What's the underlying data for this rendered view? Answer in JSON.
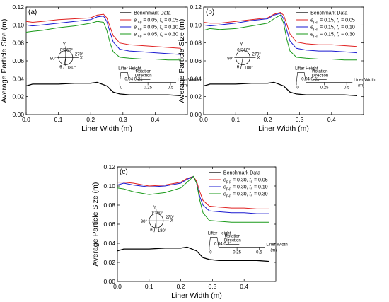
{
  "colors": {
    "benchmark": "#000000",
    "fs_005": "#e02020",
    "fs_010": "#1a1ad0",
    "fs_030": "#1a9a1a"
  },
  "chart_data": [
    {
      "type": "line",
      "panel_label": "(a)",
      "xlabel": "Liner Width (m)",
      "ylabel": "Average Particle Size (m)",
      "xlim": [
        0.0,
        0.5
      ],
      "ylim": [
        0.0,
        0.12
      ],
      "x_ticks": [
        "0.0",
        "0.1",
        "0.2",
        "0.3",
        "0.4"
      ],
      "y_ticks": [
        "0.00",
        "0.02",
        "0.04",
        "0.06",
        "0.08",
        "0.10",
        "0.12"
      ],
      "grid": false,
      "legend_position": "top-right",
      "series": [
        {
          "name": "Benchmark Data",
          "subscript": "",
          "fs": "",
          "color_key": "benchmark",
          "x": [
            0.0,
            0.02,
            0.05,
            0.1,
            0.15,
            0.2,
            0.22,
            0.25,
            0.27,
            0.29,
            0.32,
            0.36,
            0.4,
            0.44,
            0.48
          ],
          "y": [
            0.032,
            0.034,
            0.034,
            0.034,
            0.035,
            0.035,
            0.036,
            0.032,
            0.025,
            0.023,
            0.022,
            0.022,
            0.022,
            0.022,
            0.021
          ]
        },
        {
          "name": "e",
          "subscript": "p-p",
          "rest": " = 0.05, ",
          "fs_label": "f",
          "fs_sub": "s",
          "fs": " = 0.05",
          "color_key": "fs_005",
          "x": [
            0.0,
            0.02,
            0.05,
            0.1,
            0.15,
            0.2,
            0.22,
            0.24,
            0.25,
            0.26,
            0.27,
            0.29,
            0.32,
            0.36,
            0.4,
            0.44,
            0.48
          ],
          "y": [
            0.104,
            0.103,
            0.104,
            0.106,
            0.107,
            0.108,
            0.111,
            0.112,
            0.108,
            0.098,
            0.088,
            0.08,
            0.078,
            0.077,
            0.076,
            0.075,
            0.074
          ]
        },
        {
          "name": "e",
          "subscript": "p-p",
          "rest": " = 0.05, ",
          "fs_label": "f",
          "fs_sub": "s",
          "fs": " = 0.10",
          "color_key": "fs_010",
          "x": [
            0.0,
            0.02,
            0.05,
            0.1,
            0.15,
            0.2,
            0.22,
            0.24,
            0.25,
            0.26,
            0.27,
            0.29,
            0.32,
            0.36,
            0.4,
            0.44,
            0.48
          ],
          "y": [
            0.1,
            0.099,
            0.1,
            0.102,
            0.104,
            0.106,
            0.109,
            0.11,
            0.104,
            0.092,
            0.081,
            0.073,
            0.071,
            0.07,
            0.069,
            0.068,
            0.067
          ]
        },
        {
          "name": "e",
          "subscript": "p-p",
          "rest": " = 0.05, ",
          "fs_label": "f",
          "fs_sub": "s",
          "fs": " = 0.30",
          "color_key": "fs_030",
          "x": [
            0.0,
            0.02,
            0.05,
            0.1,
            0.15,
            0.2,
            0.22,
            0.24,
            0.25,
            0.26,
            0.27,
            0.29,
            0.32,
            0.36,
            0.4,
            0.44,
            0.48
          ],
          "y": [
            0.092,
            0.093,
            0.094,
            0.097,
            0.099,
            0.102,
            0.104,
            0.103,
            0.094,
            0.08,
            0.07,
            0.064,
            0.063,
            0.062,
            0.062,
            0.061,
            0.061
          ]
        }
      ]
    },
    {
      "type": "line",
      "panel_label": "(b)",
      "xlabel": "Liner Width (m)",
      "ylabel": "Average Particle Size (m)",
      "xlim": [
        0.0,
        0.5
      ],
      "ylim": [
        0.0,
        0.12
      ],
      "x_ticks": [
        "0.0",
        "0.1",
        "0.2",
        "0.3",
        "0.4"
      ],
      "y_ticks": [
        "0.00",
        "0.02",
        "0.04",
        "0.06",
        "0.08",
        "0.10",
        "0.12"
      ],
      "grid": false,
      "legend_position": "top-right",
      "series": [
        {
          "name": "Benchmark Data",
          "subscript": "",
          "fs": "",
          "color_key": "benchmark",
          "x": [
            0.0,
            0.02,
            0.05,
            0.1,
            0.15,
            0.2,
            0.22,
            0.25,
            0.27,
            0.29,
            0.32,
            0.36,
            0.4,
            0.44,
            0.48
          ],
          "y": [
            0.032,
            0.034,
            0.034,
            0.034,
            0.035,
            0.035,
            0.036,
            0.032,
            0.025,
            0.023,
            0.022,
            0.022,
            0.022,
            0.022,
            0.021
          ]
        },
        {
          "name": "e",
          "subscript": "p-p",
          "rest": " = 0.15, ",
          "fs_label": "f",
          "fs_sub": "s",
          "fs": " = 0.05",
          "color_key": "fs_005",
          "x": [
            0.0,
            0.02,
            0.05,
            0.1,
            0.15,
            0.2,
            0.22,
            0.24,
            0.25,
            0.26,
            0.27,
            0.29,
            0.32,
            0.36,
            0.4,
            0.44,
            0.48
          ],
          "y": [
            0.103,
            0.102,
            0.102,
            0.104,
            0.106,
            0.108,
            0.112,
            0.114,
            0.111,
            0.101,
            0.09,
            0.081,
            0.079,
            0.078,
            0.078,
            0.077,
            0.076
          ]
        },
        {
          "name": "e",
          "subscript": "p-p",
          "rest": " = 0.15, ",
          "fs_label": "f",
          "fs_sub": "s",
          "fs": " = 0.10",
          "color_key": "fs_010",
          "x": [
            0.0,
            0.02,
            0.05,
            0.1,
            0.15,
            0.2,
            0.22,
            0.24,
            0.25,
            0.26,
            0.27,
            0.29,
            0.32,
            0.36,
            0.4,
            0.44,
            0.48
          ],
          "y": [
            0.1,
            0.099,
            0.1,
            0.102,
            0.105,
            0.107,
            0.111,
            0.113,
            0.107,
            0.094,
            0.082,
            0.074,
            0.072,
            0.071,
            0.071,
            0.07,
            0.069
          ]
        },
        {
          "name": "e",
          "subscript": "p-p",
          "rest": " = 0.15, ",
          "fs_label": "f",
          "fs_sub": "s",
          "fs": " = 0.30",
          "color_key": "fs_030",
          "x": [
            0.0,
            0.02,
            0.05,
            0.1,
            0.15,
            0.2,
            0.22,
            0.24,
            0.25,
            0.26,
            0.27,
            0.29,
            0.32,
            0.36,
            0.4,
            0.44,
            0.48
          ],
          "y": [
            0.094,
            0.096,
            0.095,
            0.096,
            0.099,
            0.102,
            0.107,
            0.111,
            0.102,
            0.084,
            0.071,
            0.064,
            0.063,
            0.062,
            0.062,
            0.061,
            0.061
          ]
        }
      ]
    },
    {
      "type": "line",
      "panel_label": "(c)",
      "xlabel": "Liner Width (m)",
      "ylabel": "Average Particle Size (m)",
      "xlim": [
        0.0,
        0.5
      ],
      "ylim": [
        0.0,
        0.12
      ],
      "x_ticks": [
        "0.0",
        "0.1",
        "0.2",
        "0.3",
        "0.4"
      ],
      "y_ticks": [
        "0.00",
        "0.02",
        "0.04",
        "0.06",
        "0.08",
        "0.10",
        "0.12"
      ],
      "grid": false,
      "legend_position": "top-right",
      "series": [
        {
          "name": "Benchmark Data",
          "subscript": "",
          "fs": "",
          "color_key": "benchmark",
          "x": [
            0.0,
            0.02,
            0.05,
            0.1,
            0.15,
            0.2,
            0.22,
            0.25,
            0.27,
            0.29,
            0.32,
            0.36,
            0.4,
            0.44,
            0.48
          ],
          "y": [
            0.032,
            0.034,
            0.034,
            0.034,
            0.035,
            0.035,
            0.036,
            0.032,
            0.025,
            0.023,
            0.022,
            0.022,
            0.022,
            0.022,
            0.021
          ]
        },
        {
          "name": "e",
          "subscript": "p-p",
          "rest": " = 0.30, ",
          "fs_label": "f",
          "fs_sub": "s",
          "fs": " = 0.05",
          "color_key": "fs_005",
          "x": [
            0.0,
            0.02,
            0.05,
            0.1,
            0.15,
            0.2,
            0.22,
            0.24,
            0.25,
            0.26,
            0.27,
            0.29,
            0.32,
            0.36,
            0.4,
            0.44,
            0.48
          ],
          "y": [
            0.104,
            0.104,
            0.103,
            0.1,
            0.101,
            0.104,
            0.108,
            0.11,
            0.105,
            0.094,
            0.085,
            0.079,
            0.078,
            0.077,
            0.077,
            0.076,
            0.076
          ]
        },
        {
          "name": "e",
          "subscript": "p-p",
          "rest": " = 0.30, ",
          "fs_label": "f",
          "fs_sub": "s",
          "fs": " = 0.10",
          "color_key": "fs_010",
          "x": [
            0.0,
            0.02,
            0.05,
            0.1,
            0.15,
            0.2,
            0.22,
            0.24,
            0.25,
            0.26,
            0.27,
            0.29,
            0.32,
            0.36,
            0.4,
            0.44,
            0.48
          ],
          "y": [
            0.101,
            0.103,
            0.101,
            0.099,
            0.1,
            0.103,
            0.107,
            0.11,
            0.103,
            0.089,
            0.08,
            0.074,
            0.073,
            0.072,
            0.072,
            0.071,
            0.071
          ]
        },
        {
          "name": "e",
          "subscript": "p-p",
          "rest": " = 0.30, ",
          "fs_label": "f",
          "fs_sub": "s",
          "fs": " = 0.30",
          "color_key": "fs_030",
          "x": [
            0.0,
            0.02,
            0.05,
            0.1,
            0.15,
            0.2,
            0.22,
            0.24,
            0.25,
            0.26,
            0.27,
            0.29,
            0.32,
            0.36,
            0.4,
            0.44,
            0.48
          ],
          "y": [
            0.098,
            0.097,
            0.094,
            0.091,
            0.093,
            0.098,
            0.104,
            0.11,
            0.103,
            0.085,
            0.072,
            0.064,
            0.063,
            0.062,
            0.062,
            0.062,
            0.062
          ]
        }
      ]
    }
  ],
  "inset_clock": {
    "axis_y": "Y",
    "axis_x": "X",
    "angle_top": "0°360°",
    "angle_right": "270°",
    "angle_left": "90°",
    "angle_bottom": "180°",
    "theta": "θ"
  },
  "inset_liner": {
    "lifter_height": "Lifter Height",
    "rotation": "Rotation",
    "direction": "Direction",
    "dims": "0.04 0.21",
    "tick_0": "0",
    "tick_025": "0.25",
    "tick_05": "0.5",
    "liner_width": "Liner Width",
    "unit": "(m)"
  }
}
